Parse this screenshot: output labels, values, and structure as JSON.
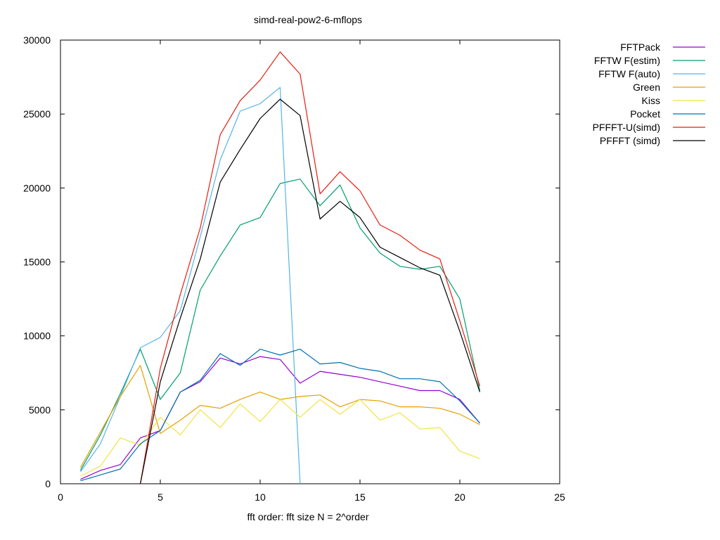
{
  "chart_data": {
    "type": "line",
    "title": "simd-real-pow2-6-mflops",
    "xlabel": "fft order: fft size N = 2^order",
    "ylabel": "",
    "xlim": [
      0,
      25
    ],
    "ylim": [
      0,
      30000
    ],
    "xticks": [
      0,
      5,
      10,
      15,
      20,
      25
    ],
    "yticks": [
      0,
      5000,
      10000,
      15000,
      20000,
      25000,
      30000
    ],
    "grid": false,
    "legend_position": "outside-top-right",
    "series": [
      {
        "name": "FFTPack",
        "color": "#9400d3",
        "x": [
          1,
          2,
          3,
          4,
          5,
          6,
          7,
          8,
          9,
          10,
          11,
          12,
          13,
          14,
          15,
          16,
          17,
          18,
          19,
          20,
          21
        ],
        "values": [
          300,
          900,
          1300,
          3100,
          3600,
          6200,
          6900,
          8500,
          8100,
          8600,
          8400,
          6800,
          7600,
          7400,
          7200,
          6900,
          6600,
          6300,
          6300,
          5700,
          4100
        ]
      },
      {
        "name": "FFTW F(estim)",
        "color": "#009e73",
        "x": [
          1,
          2,
          3,
          4,
          5,
          6,
          7,
          8,
          9,
          10,
          11,
          12,
          13,
          14,
          15,
          16,
          17,
          18,
          19,
          20,
          21
        ],
        "values": [
          900,
          3300,
          6100,
          9100,
          5700,
          7500,
          13100,
          15400,
          17500,
          18000,
          20300,
          20600,
          18800,
          20200,
          17300,
          15600,
          14700,
          14500,
          14700,
          12500,
          6300
        ]
      },
      {
        "name": "FFTW F(auto)",
        "color": "#56b4e9",
        "x": [
          1,
          2,
          3,
          4,
          5,
          6,
          7,
          8,
          9,
          10,
          11,
          12
        ],
        "values": [
          800,
          2700,
          5900,
          9200,
          9900,
          11700,
          16700,
          21900,
          25200,
          25700,
          26800,
          0
        ]
      },
      {
        "name": "Green",
        "color": "#e69f00",
        "x": [
          1,
          2,
          3,
          4,
          5,
          6,
          7,
          8,
          9,
          10,
          11,
          12,
          13,
          14,
          15,
          16,
          17,
          18,
          19,
          20,
          21
        ],
        "values": [
          1100,
          3500,
          5900,
          8000,
          3400,
          4300,
          5300,
          5100,
          5700,
          6200,
          5700,
          5900,
          6000,
          5200,
          5700,
          5600,
          5200,
          5200,
          5100,
          4700,
          4000
        ]
      },
      {
        "name": "Kiss",
        "color": "#f0e442",
        "x": [
          1,
          2,
          3,
          4,
          5,
          6,
          7,
          8,
          9,
          10,
          11,
          12,
          13,
          14,
          15,
          16,
          17,
          18,
          19,
          20,
          21
        ],
        "values": [
          500,
          1200,
          3100,
          2600,
          4500,
          3300,
          5000,
          3800,
          5400,
          4200,
          5700,
          4500,
          5700,
          4700,
          5700,
          4300,
          4800,
          3700,
          3800,
          2200,
          1700
        ]
      },
      {
        "name": "Pocket",
        "color": "#0072b2",
        "x": [
          1,
          2,
          3,
          4,
          5,
          6,
          7,
          8,
          9,
          10,
          11,
          12,
          13,
          14,
          15,
          16,
          17,
          18,
          19,
          20,
          21
        ],
        "values": [
          200,
          600,
          1000,
          2700,
          3600,
          6200,
          7000,
          8800,
          8000,
          9100,
          8700,
          9100,
          8100,
          8200,
          7800,
          7600,
          7100,
          7100,
          6900,
          5600,
          4100
        ]
      },
      {
        "name": "PFFFT-U(simd)",
        "color": "#e51e10",
        "x": [
          4,
          5,
          6,
          7,
          8,
          9,
          10,
          11,
          12,
          13,
          14,
          15,
          16,
          17,
          18,
          19,
          20,
          21
        ],
        "values": [
          0,
          7800,
          12800,
          17300,
          23600,
          25900,
          27300,
          29200,
          27700,
          19600,
          21100,
          19800,
          17500,
          16800,
          15800,
          15200,
          11000,
          6600
        ]
      },
      {
        "name": "PFFFT (simd)",
        "color": "#000000",
        "x": [
          4,
          5,
          6,
          7,
          8,
          9,
          10,
          11,
          12,
          13,
          14,
          15,
          16,
          17,
          18,
          19,
          20,
          21
        ],
        "values": [
          0,
          6900,
          11200,
          15200,
          20400,
          22600,
          24700,
          26000,
          24900,
          17900,
          19100,
          18000,
          16000,
          15300,
          14600,
          14100,
          10300,
          6200
        ]
      }
    ]
  }
}
